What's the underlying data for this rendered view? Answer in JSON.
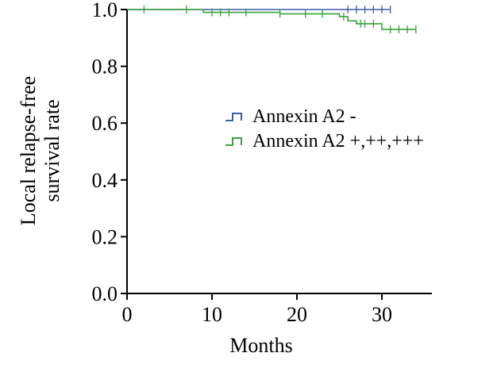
{
  "chart_data": {
    "type": "line",
    "subtype": "kaplan-meier",
    "title": "",
    "xlabel": "Months",
    "ylabel_lines": [
      "Local relapse-free",
      "survival rate"
    ],
    "xlim": [
      0,
      36
    ],
    "ylim": [
      0,
      1.0
    ],
    "x_ticks": [
      0,
      10,
      20,
      30
    ],
    "x_tick_labels": [
      "0",
      "10",
      "20",
      "30"
    ],
    "y_ticks": [
      0,
      0.2,
      0.4,
      0.6,
      0.8,
      1.0
    ],
    "y_tick_labels": [
      "0.0",
      "0.2",
      "0.4",
      "0.6",
      "0.8",
      "1.0"
    ],
    "grid": false,
    "legend_position": "center-right",
    "series": [
      {
        "name": "Annexin A2 -",
        "color": "#3a5fa8",
        "steps": [
          [
            0,
            1.0
          ],
          [
            31,
            1.0
          ]
        ],
        "censored": [
          [
            26,
            1.0
          ],
          [
            27,
            1.0
          ],
          [
            28,
            1.0
          ],
          [
            29,
            1.0
          ],
          [
            30,
            1.0
          ],
          [
            31,
            1.0
          ]
        ]
      },
      {
        "name": "Annexin A2 +,++,+++",
        "color": "#3aa23a",
        "steps": [
          [
            0,
            1.0
          ],
          [
            9,
            1.0
          ],
          [
            9,
            0.99
          ],
          [
            18,
            0.99
          ],
          [
            18,
            0.985
          ],
          [
            25,
            0.985
          ],
          [
            25,
            0.975
          ],
          [
            26,
            0.975
          ],
          [
            26,
            0.96
          ],
          [
            27,
            0.96
          ],
          [
            27,
            0.95
          ],
          [
            30,
            0.95
          ],
          [
            30,
            0.93
          ],
          [
            34,
            0.93
          ]
        ],
        "censored": [
          [
            2,
            1.0
          ],
          [
            7,
            1.0
          ],
          [
            10,
            0.99
          ],
          [
            11,
            0.99
          ],
          [
            12,
            0.99
          ],
          [
            14,
            0.99
          ],
          [
            18,
            0.985
          ],
          [
            21,
            0.985
          ],
          [
            23,
            0.985
          ],
          [
            25.5,
            0.975
          ],
          [
            27.5,
            0.95
          ],
          [
            28,
            0.95
          ],
          [
            29,
            0.95
          ],
          [
            31,
            0.93
          ],
          [
            32,
            0.93
          ],
          [
            33,
            0.93
          ],
          [
            34,
            0.93
          ]
        ]
      }
    ]
  }
}
